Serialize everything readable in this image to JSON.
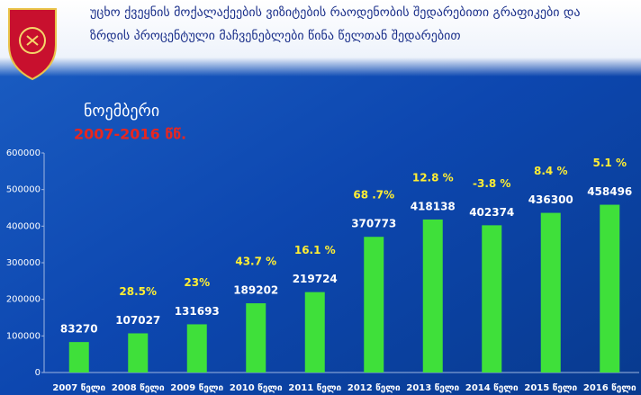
{
  "chart_data": {
    "type": "bar",
    "title": [
      "უცხო ქვეყნის მოქალაქეების ვიზიტების რაოდენობის შედარებითი გრაფიკები და",
      "ზრდის პროცენტული მაჩვენებლები წინა წელთან შედარებით"
    ],
    "subtitle": "ნოემბერი",
    "period": "2007-2016 წწ.",
    "categories": [
      "2007 წელი",
      "2008 წელი",
      "2009 წელი",
      "2010 წელი",
      "2011 წელი",
      "2012 წელი",
      "2013 წელი",
      "2014 წელი",
      "2015 წელი",
      "2016 წელი"
    ],
    "values": [
      83270,
      107027,
      131693,
      189202,
      219724,
      370773,
      418138,
      402374,
      436300,
      458496
    ],
    "growth_labels": [
      null,
      "28.5%",
      "23%",
      "43.7 %",
      "16.1 %",
      "68 .7%",
      "12.8 %",
      "-3.8 %",
      "8.4 %",
      "5.1 %"
    ],
    "color": "#3fe03a",
    "ylim": [
      0,
      600000
    ],
    "yticks": [
      0,
      100000,
      200000,
      300000,
      400000,
      500000,
      600000
    ],
    "grid": false
  }
}
